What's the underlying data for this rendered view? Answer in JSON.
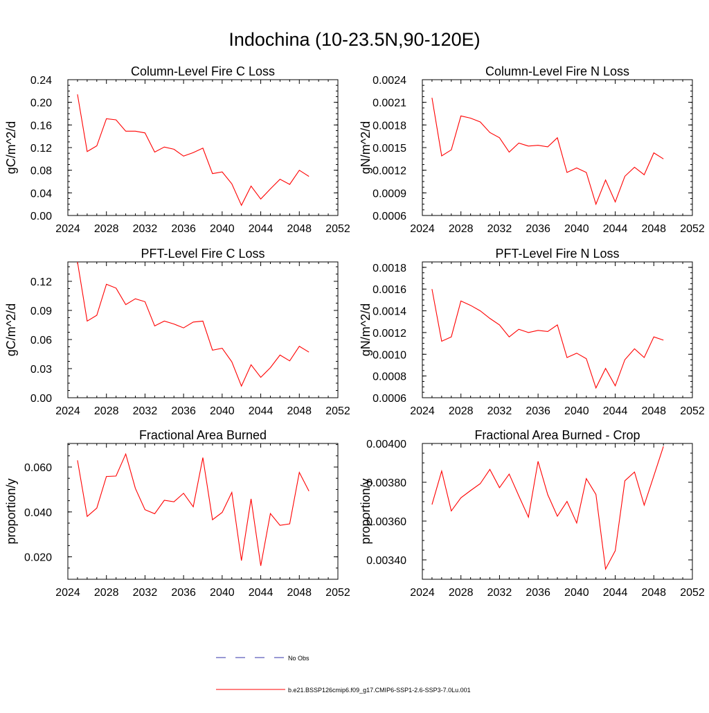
{
  "main_title": "Indochina (10-23.5N,90-120E)",
  "colors": {
    "series": "#ff0000",
    "obs": "#3333aa",
    "axis": "#000000"
  },
  "legend": {
    "no_obs_label": "No Obs",
    "run_label": "b.e21.BSSP126cmip6.f09_g17.CMIP6-SSP1-2.6-SSP3-7.0Lu.001"
  },
  "chart_data": [
    {
      "type": "line",
      "title": "Column-Level Fire C Loss",
      "ylabel": "gC/m^2/d",
      "xlim": [
        2024,
        2052
      ],
      "ylim": [
        0.0,
        0.24
      ],
      "xticks": [
        "2024",
        "2028",
        "2032",
        "2036",
        "2040",
        "2044",
        "2048",
        "2052"
      ],
      "yticks": [
        "0.00",
        "0.04",
        "0.08",
        "0.12",
        "0.16",
        "0.20",
        "0.24"
      ],
      "series": [
        {
          "x": [
            2025,
            2026,
            2027,
            2028,
            2029,
            2030,
            2031,
            2032,
            2033,
            2034,
            2035,
            2036,
            2037,
            2038,
            2039,
            2040,
            2041,
            2042,
            2043,
            2044,
            2045,
            2046,
            2047,
            2048,
            2049
          ],
          "values": [
            0.214,
            0.113,
            0.123,
            0.171,
            0.169,
            0.149,
            0.149,
            0.146,
            0.112,
            0.121,
            0.117,
            0.105,
            0.111,
            0.119,
            0.074,
            0.077,
            0.056,
            0.018,
            0.052,
            0.029,
            0.047,
            0.064,
            0.055,
            0.08,
            0.069
          ]
        }
      ]
    },
    {
      "type": "line",
      "title": "Column-Level Fire N Loss",
      "ylabel": "gN/m^2/d",
      "xlim": [
        2024,
        2052
      ],
      "ylim": [
        0.0006,
        0.0024
      ],
      "xticks": [
        "2024",
        "2028",
        "2032",
        "2036",
        "2040",
        "2044",
        "2048",
        "2052"
      ],
      "yticks": [
        "0.0006",
        "0.0009",
        "0.0012",
        "0.0015",
        "0.0018",
        "0.0021",
        "0.0024"
      ],
      "series": [
        {
          "x": [
            2025,
            2026,
            2027,
            2028,
            2029,
            2030,
            2031,
            2032,
            2033,
            2034,
            2035,
            2036,
            2037,
            2038,
            2039,
            2040,
            2041,
            2042,
            2043,
            2044,
            2045,
            2046,
            2047,
            2048,
            2049
          ],
          "values": [
            0.00216,
            0.00139,
            0.00147,
            0.00192,
            0.00189,
            0.00184,
            0.0017,
            0.00163,
            0.00144,
            0.00156,
            0.00152,
            0.00153,
            0.00151,
            0.00163,
            0.00117,
            0.00123,
            0.00117,
            0.00075,
            0.00107,
            0.00078,
            0.00112,
            0.00124,
            0.00114,
            0.00143,
            0.00135
          ]
        }
      ]
    },
    {
      "type": "line",
      "title": "PFT-Level Fire C Loss",
      "ylabel": "gC/m^2/d",
      "xlim": [
        2024,
        2052
      ],
      "ylim": [
        0.0,
        0.14
      ],
      "xticks": [
        "2024",
        "2028",
        "2032",
        "2036",
        "2040",
        "2044",
        "2048",
        "2052"
      ],
      "yticks": [
        "0.00",
        "0.03",
        "0.06",
        "0.09",
        "0.12"
      ],
      "series": [
        {
          "x": [
            2025,
            2026,
            2027,
            2028,
            2029,
            2030,
            2031,
            2032,
            2033,
            2034,
            2035,
            2036,
            2037,
            2038,
            2039,
            2040,
            2041,
            2042,
            2043,
            2044,
            2045,
            2046,
            2047,
            2048,
            2049
          ],
          "values": [
            0.14,
            0.079,
            0.085,
            0.117,
            0.113,
            0.096,
            0.102,
            0.099,
            0.074,
            0.079,
            0.076,
            0.072,
            0.078,
            0.079,
            0.049,
            0.051,
            0.037,
            0.012,
            0.034,
            0.021,
            0.031,
            0.044,
            0.038,
            0.053,
            0.047
          ]
        }
      ]
    },
    {
      "type": "line",
      "title": "PFT-Level Fire N Loss",
      "ylabel": "gN/m^2/d",
      "xlim": [
        2024,
        2052
      ],
      "ylim": [
        0.0006,
        0.00185
      ],
      "xticks": [
        "2024",
        "2028",
        "2032",
        "2036",
        "2040",
        "2044",
        "2048",
        "2052"
      ],
      "yticks": [
        "0.0006",
        "0.0008",
        "0.0010",
        "0.0012",
        "0.0014",
        "0.0016",
        "0.0018"
      ],
      "series": [
        {
          "x": [
            2025,
            2026,
            2027,
            2028,
            2029,
            2030,
            2031,
            2032,
            2033,
            2034,
            2035,
            2036,
            2037,
            2038,
            2039,
            2040,
            2041,
            2042,
            2043,
            2044,
            2045,
            2046,
            2047,
            2048,
            2049
          ],
          "values": [
            0.0016,
            0.00112,
            0.00116,
            0.00149,
            0.00145,
            0.0014,
            0.00133,
            0.00127,
            0.00116,
            0.00123,
            0.0012,
            0.00122,
            0.00121,
            0.00127,
            0.00097,
            0.00101,
            0.00096,
            0.00069,
            0.00087,
            0.00071,
            0.00095,
            0.00105,
            0.00097,
            0.00116,
            0.00113
          ]
        }
      ]
    },
    {
      "type": "line",
      "title": "Fractional Area Burned",
      "ylabel": "proportion/y",
      "xlim": [
        2024,
        2052
      ],
      "ylim": [
        0.01,
        0.0705
      ],
      "xticks": [
        "2024",
        "2028",
        "2032",
        "2036",
        "2040",
        "2044",
        "2048",
        "2052"
      ],
      "yticks": [
        "0.020",
        "0.040",
        "0.060"
      ],
      "series": [
        {
          "x": [
            2025,
            2026,
            2027,
            2028,
            2029,
            2030,
            2031,
            2032,
            2033,
            2034,
            2035,
            2036,
            2037,
            2038,
            2039,
            2040,
            2041,
            2042,
            2043,
            2044,
            2045,
            2046,
            2047,
            2048,
            2049
          ],
          "values": [
            0.063,
            0.038,
            0.0417,
            0.0558,
            0.056,
            0.0658,
            0.0505,
            0.041,
            0.0392,
            0.0452,
            0.0445,
            0.0483,
            0.0423,
            0.0642,
            0.0365,
            0.0398,
            0.0487,
            0.0183,
            0.0458,
            0.016,
            0.0393,
            0.034,
            0.0347,
            0.0576,
            0.0493
          ]
        }
      ]
    },
    {
      "type": "line",
      "title": "Fractional Area Burned - Crop",
      "ylabel": "proportion/y",
      "xlim": [
        2024,
        2052
      ],
      "ylim": [
        0.0033,
        0.004
      ],
      "xticks": [
        "2024",
        "2028",
        "2032",
        "2036",
        "2040",
        "2044",
        "2048",
        "2052"
      ],
      "yticks": [
        "0.00340",
        "0.00360",
        "0.00380",
        "0.00400"
      ],
      "series": [
        {
          "x": [
            2025,
            2026,
            2027,
            2028,
            2029,
            2030,
            2031,
            2032,
            2033,
            2034,
            2035,
            2036,
            2037,
            2038,
            2039,
            2040,
            2041,
            2042,
            2043,
            2044,
            2045,
            2046,
            2047,
            2048,
            2049
          ],
          "values": [
            0.003685,
            0.003858,
            0.003652,
            0.00372,
            0.003757,
            0.003793,
            0.003866,
            0.003772,
            0.003842,
            0.00373,
            0.00362,
            0.003908,
            0.003736,
            0.003625,
            0.003701,
            0.00359,
            0.003819,
            0.003737,
            0.003353,
            0.003447,
            0.003808,
            0.003853,
            0.003682,
            0.003833,
            0.003985
          ]
        }
      ]
    }
  ]
}
